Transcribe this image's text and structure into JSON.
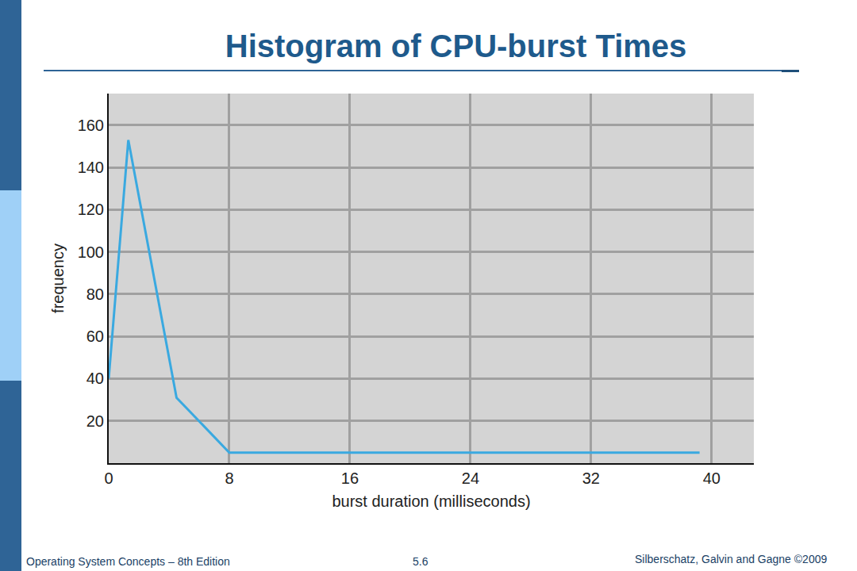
{
  "chart_data": {
    "type": "line",
    "title": "Histogram of CPU-burst Times",
    "x": [
      0,
      1.3,
      4.5,
      8,
      39.2
    ],
    "values": [
      40,
      153,
      31,
      5,
      5
    ],
    "color": "#3aa9e0",
    "x_label": "burst duration (milliseconds)",
    "y_label": "frequency",
    "xlim": [
      0,
      42.8
    ],
    "xticks": [
      0,
      8,
      16,
      24,
      32,
      40
    ],
    "ylim": [
      0,
      175
    ],
    "yticks": [
      20,
      40,
      60,
      80,
      100,
      120,
      140,
      160
    ],
    "grid": true
  },
  "footer": {
    "left": "Operating System Concepts – 8th Edition",
    "center": "5.6",
    "right": "Silberschatz, Galvin and Gagne ©2009"
  }
}
